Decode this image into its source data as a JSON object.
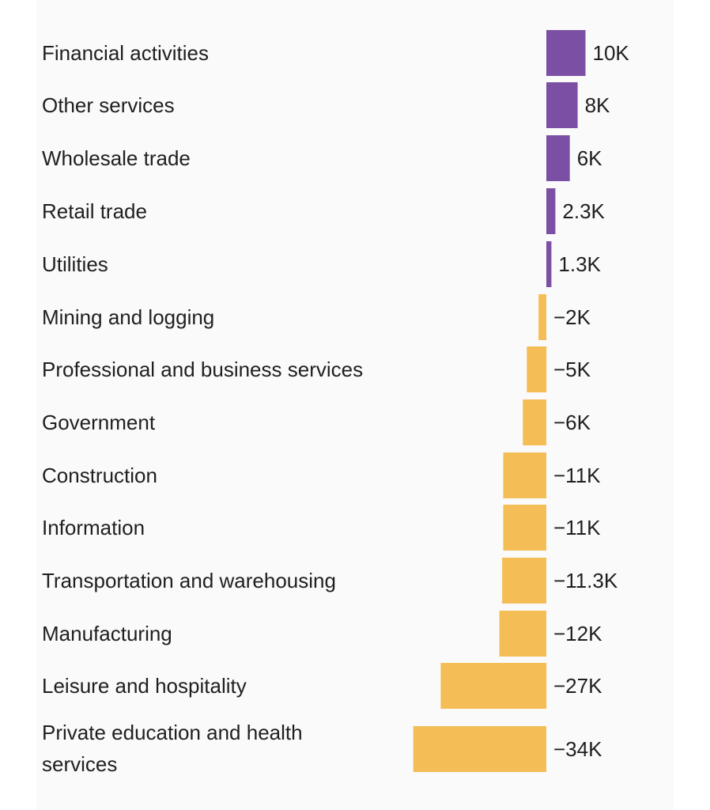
{
  "chart_data": {
    "type": "bar",
    "orientation": "horizontal",
    "title": "",
    "xlabel": "",
    "ylabel": "",
    "grid": false,
    "legend": "none",
    "colors": {
      "positive": "#7b4fa3",
      "negative": "#f5bd55"
    },
    "categories": [
      "Financial activities",
      "Other services",
      "Wholesale trade",
      "Retail trade",
      "Utilities",
      "Mining and logging",
      "Professional and business services",
      "Government",
      "Construction",
      "Information",
      "Transportation and warehousing",
      "Manufacturing",
      "Leisure and hospitality",
      "Private education and health services"
    ],
    "values": [
      10,
      8,
      6,
      2.3,
      1.3,
      -2,
      -5,
      -6,
      -11,
      -11,
      -11.3,
      -12,
      -27,
      -34
    ],
    "value_labels": [
      "10K",
      "8K",
      "6K",
      "2.3K",
      "1.3K",
      "−2K",
      "−5K",
      "−6K",
      "−11K",
      "−11K",
      "−11.3K",
      "−12K",
      "−27K",
      "−34K"
    ],
    "unit": "thousands of jobs"
  }
}
